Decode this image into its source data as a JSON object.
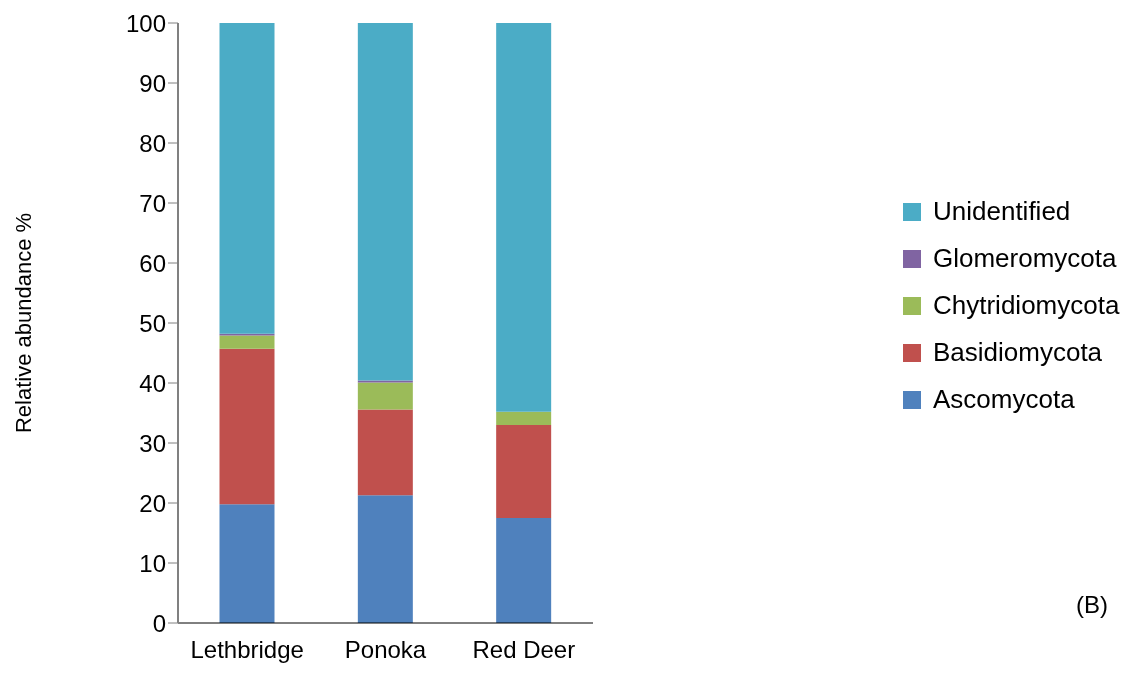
{
  "chart_data": {
    "type": "bar",
    "stacked": true,
    "ylabel": "Relative abundance %",
    "categories": [
      "Lethbridge",
      "Ponoka",
      "Red Deer"
    ],
    "series": [
      {
        "name": "Ascomycota",
        "color": "#4f81bd",
        "values": [
          19.8,
          21.3,
          17.5
        ]
      },
      {
        "name": "Basidiomycota",
        "color": "#c0504d",
        "values": [
          25.9,
          14.3,
          15.5
        ]
      },
      {
        "name": "Chytridiomycota",
        "color": "#9bbb59",
        "values": [
          2.2,
          4.5,
          2.2
        ]
      },
      {
        "name": "Glomeromycota",
        "color": "#8064a2",
        "values": [
          0.3,
          0.3,
          0
        ]
      },
      {
        "name": "Unidentified",
        "color": "#4bacc6",
        "values": [
          51.8,
          59.6,
          64.8
        ]
      }
    ],
    "ylim": [
      0,
      100
    ],
    "yticks": [
      0,
      10,
      20,
      30,
      40,
      50,
      60,
      70,
      80,
      90,
      100
    ],
    "legend": "right",
    "grid": false,
    "annotations": [
      "(B)"
    ]
  }
}
